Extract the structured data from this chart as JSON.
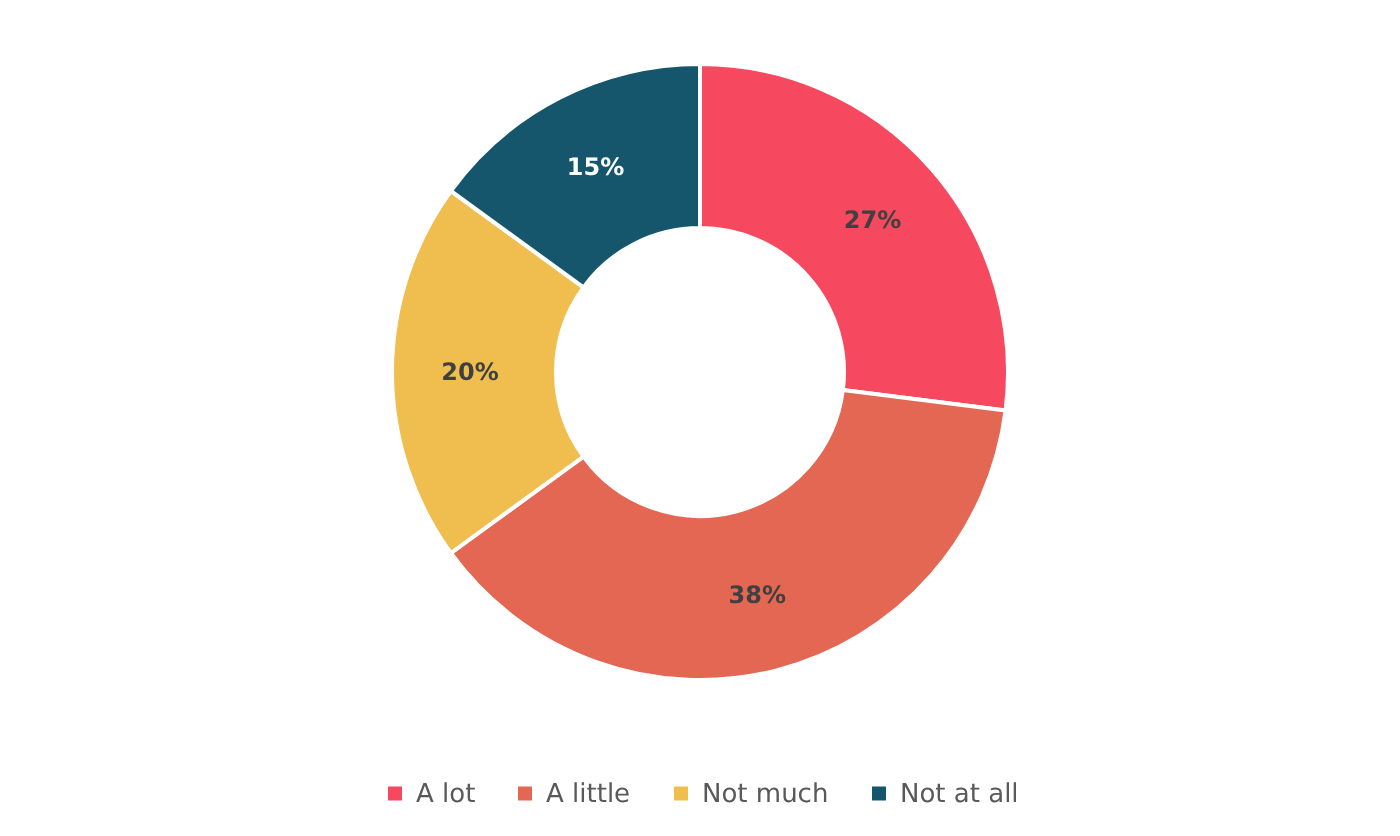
{
  "chart_data": {
    "type": "donut",
    "categories": [
      "A lot",
      "A little",
      "Not much",
      "Not at all"
    ],
    "values": [
      27,
      38,
      20,
      15
    ],
    "value_labels": [
      "27%",
      "38%",
      "20%",
      "15%"
    ],
    "colors": [
      "#f6485e",
      "#e36752",
      "#f0be4f",
      "#16566c"
    ],
    "legend": "bottom"
  }
}
